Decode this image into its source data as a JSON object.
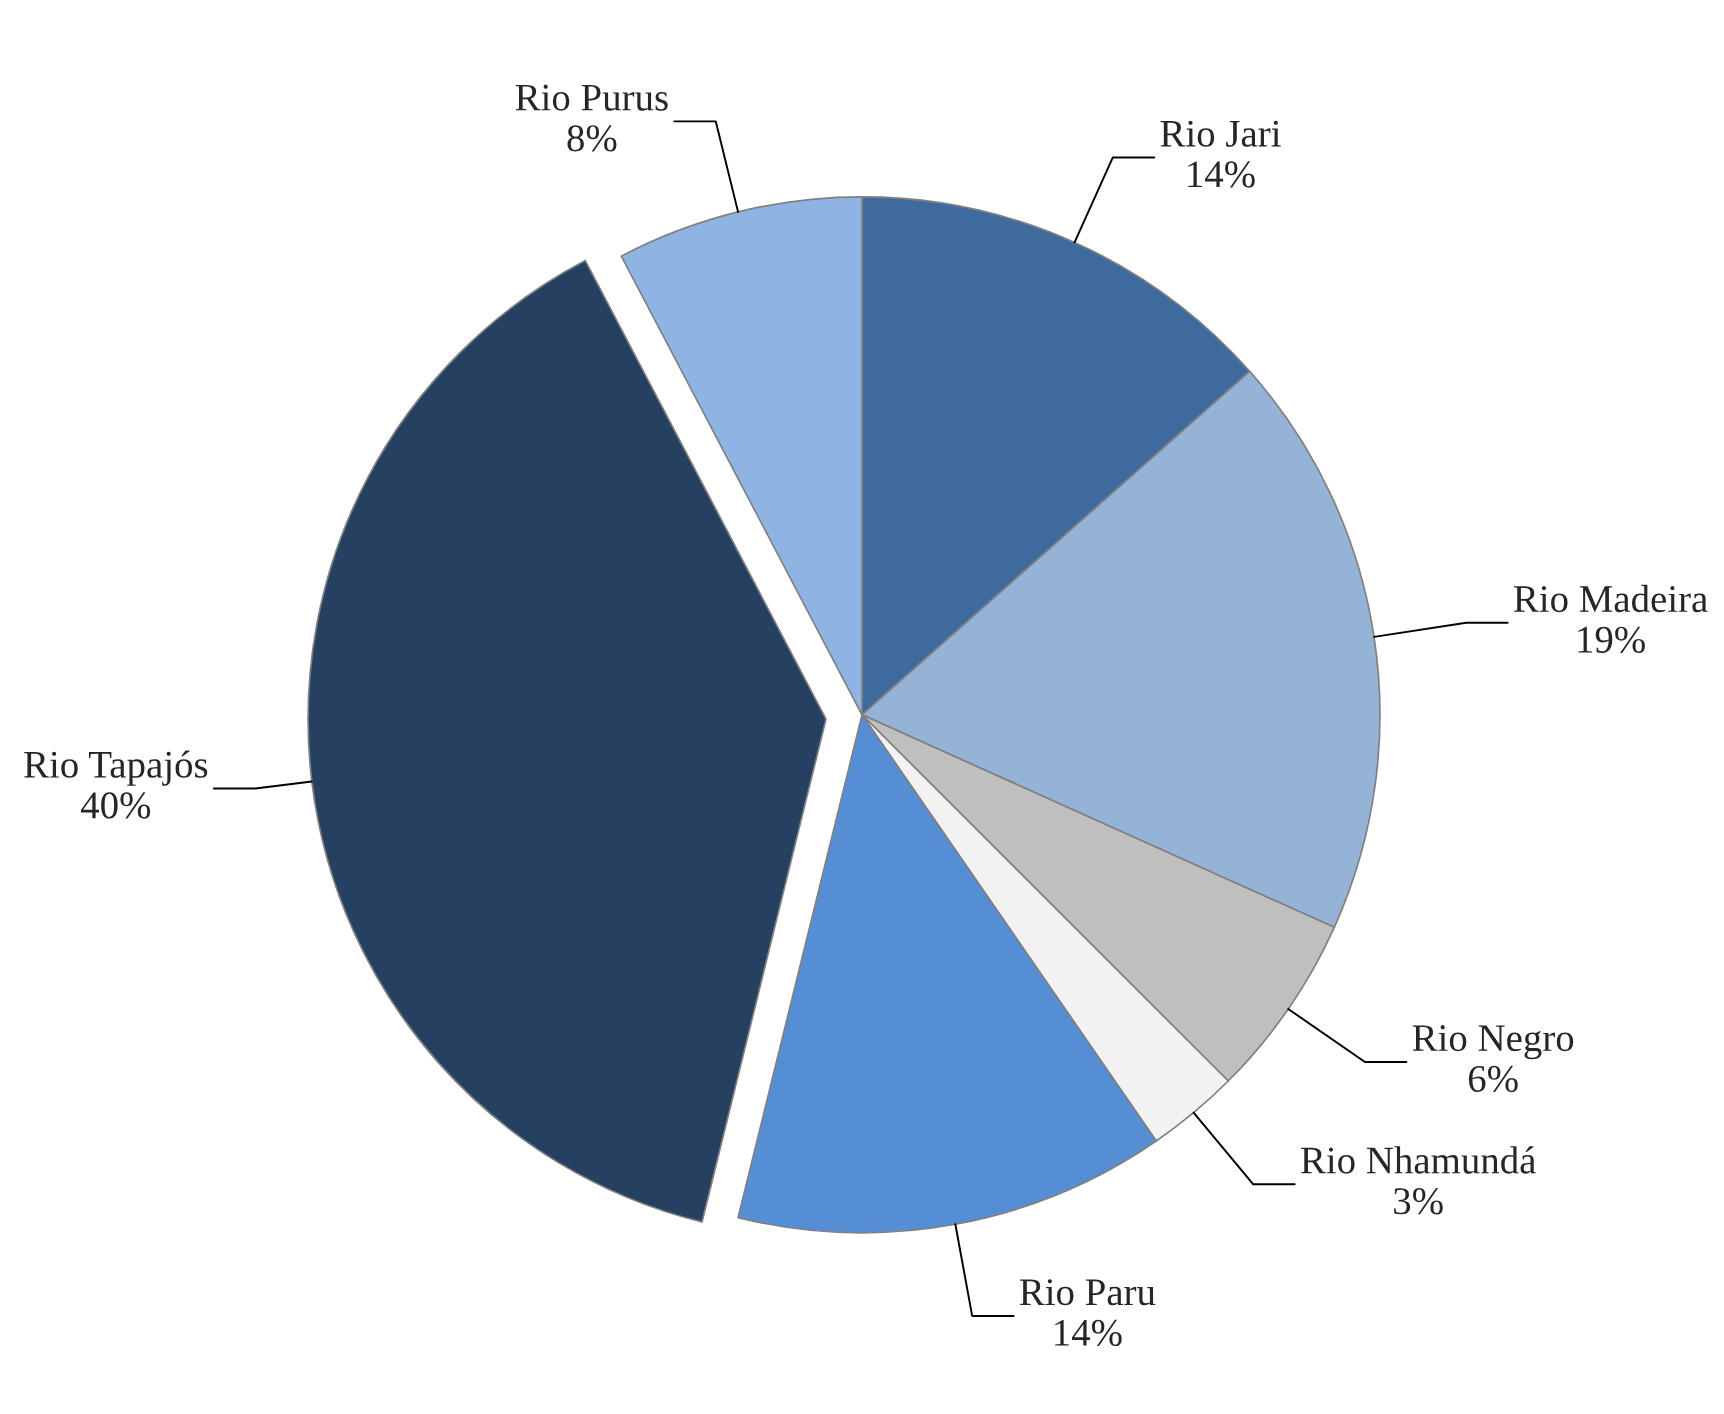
{
  "chart_data": {
    "type": "pie",
    "categories": [
      "Rio Jari",
      "Rio Madeira",
      "Rio Negro",
      "Rio Nhamundá",
      "Rio Paru",
      "Rio Tapajós",
      "Rio Purus"
    ],
    "values": [
      14,
      19,
      6,
      3,
      14,
      40,
      8
    ],
    "value_labels": [
      "14%",
      "19%",
      "6%",
      "3%",
      "14%",
      "40%",
      "8%"
    ],
    "colors": [
      "#3f6a9e",
      "#95b3d7",
      "#bfbfbf",
      "#f2f2f2",
      "#558ed5",
      "#254061",
      "#8eb4e3"
    ],
    "legend": false
  }
}
